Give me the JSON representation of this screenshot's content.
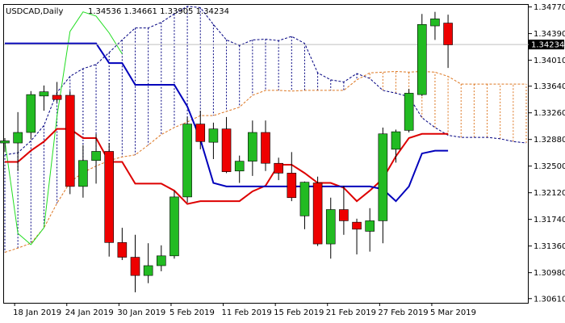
{
  "chart_data": {
    "type": "candlestick",
    "header": {
      "symbol": "USDCAD,Daily",
      "ohlc": "1.34536 1.34661 1.33905 1.34234"
    },
    "current_price_label": "1.34234",
    "current_price": 1.34234,
    "ylim": [
      1.3055,
      1.348
    ],
    "y_ticks": [
      1.3477,
      1.3439,
      1.3401,
      1.3364,
      1.3326,
      1.3288,
      1.325,
      1.3212,
      1.3174,
      1.3136,
      1.3098,
      1.3061
    ],
    "y_tick_labels": [
      "1.34770",
      "1.34390",
      "1.34010",
      "1.33640",
      "1.33260",
      "1.32880",
      "1.32500",
      "1.32120",
      "1.31740",
      "1.31360",
      "1.30980",
      "1.30610"
    ],
    "x_label_positions": [
      1,
      5,
      9,
      13,
      17,
      21,
      25,
      29,
      33
    ],
    "x_labels": [
      "18 Jan 2019",
      "24 Jan 2019",
      "30 Jan 2019",
      "5 Feb 2019",
      "11 Feb 2019",
      "15 Feb 2019",
      "21 Feb 2019",
      "27 Feb 2019",
      "5 Mar 2019"
    ],
    "candles": [
      {
        "o": 1.3283,
        "h": 1.329,
        "l": 1.327,
        "c": 1.3286
      },
      {
        "o": 1.3283,
        "h": 1.3327,
        "l": 1.3243,
        "c": 1.3298
      },
      {
        "o": 1.3298,
        "h": 1.3357,
        "l": 1.3288,
        "c": 1.3352
      },
      {
        "o": 1.335,
        "h": 1.3365,
        "l": 1.3329,
        "c": 1.3356
      },
      {
        "o": 1.3351,
        "h": 1.337,
        "l": 1.3341,
        "c": 1.3345
      },
      {
        "o": 1.3351,
        "h": 1.3357,
        "l": 1.321,
        "c": 1.3221
      },
      {
        "o": 1.3221,
        "h": 1.328,
        "l": 1.3205,
        "c": 1.3258
      },
      {
        "o": 1.3258,
        "h": 1.3296,
        "l": 1.3225,
        "c": 1.3271
      },
      {
        "o": 1.3271,
        "h": 1.3283,
        "l": 1.3121,
        "c": 1.3141
      },
      {
        "o": 1.3141,
        "h": 1.3162,
        "l": 1.3116,
        "c": 1.312
      },
      {
        "o": 1.312,
        "h": 1.3152,
        "l": 1.307,
        "c": 1.3094
      },
      {
        "o": 1.3094,
        "h": 1.314,
        "l": 1.3083,
        "c": 1.3108
      },
      {
        "o": 1.3108,
        "h": 1.3137,
        "l": 1.31,
        "c": 1.3122
      },
      {
        "o": 1.3122,
        "h": 1.3215,
        "l": 1.3118,
        "c": 1.3206
      },
      {
        "o": 1.3206,
        "h": 1.332,
        "l": 1.3198,
        "c": 1.331
      },
      {
        "o": 1.331,
        "h": 1.3329,
        "l": 1.3274,
        "c": 1.3285
      },
      {
        "o": 1.3284,
        "h": 1.3312,
        "l": 1.326,
        "c": 1.3303
      },
      {
        "o": 1.3303,
        "h": 1.332,
        "l": 1.324,
        "c": 1.3242
      },
      {
        "o": 1.3243,
        "h": 1.3265,
        "l": 1.3226,
        "c": 1.3257
      },
      {
        "o": 1.3257,
        "h": 1.3315,
        "l": 1.3236,
        "c": 1.3298
      },
      {
        "o": 1.3298,
        "h": 1.3315,
        "l": 1.3243,
        "c": 1.3254
      },
      {
        "o": 1.3254,
        "h": 1.3262,
        "l": 1.323,
        "c": 1.324
      },
      {
        "o": 1.324,
        "h": 1.327,
        "l": 1.32,
        "c": 1.3205
      },
      {
        "o": 1.3179,
        "h": 1.3228,
        "l": 1.316,
        "c": 1.3227
      },
      {
        "o": 1.3226,
        "h": 1.3235,
        "l": 1.3136,
        "c": 1.3139
      },
      {
        "o": 1.3139,
        "h": 1.3205,
        "l": 1.3118,
        "c": 1.3188
      },
      {
        "o": 1.3188,
        "h": 1.3222,
        "l": 1.3152,
        "c": 1.3172
      },
      {
        "o": 1.317,
        "h": 1.3175,
        "l": 1.3124,
        "c": 1.316
      },
      {
        "o": 1.3157,
        "h": 1.319,
        "l": 1.3128,
        "c": 1.3172
      },
      {
        "o": 1.3172,
        "h": 1.3305,
        "l": 1.314,
        "c": 1.3296
      },
      {
        "o": 1.3274,
        "h": 1.3302,
        "l": 1.3255,
        "c": 1.3299
      },
      {
        "o": 1.3301,
        "h": 1.336,
        "l": 1.3298,
        "c": 1.3354
      },
      {
        "o": 1.3352,
        "h": 1.3467,
        "l": 1.335,
        "c": 1.3452
      },
      {
        "o": 1.345,
        "h": 1.347,
        "l": 1.343,
        "c": 1.346
      },
      {
        "o": 1.3454,
        "h": 1.3466,
        "l": 1.339,
        "c": 1.3423
      }
    ],
    "series": [
      {
        "key": "tenkan",
        "color": "#dd0000",
        "x": [
          0,
          1,
          2,
          3,
          4,
          5,
          6,
          7,
          8,
          9,
          10,
          11,
          12,
          13,
          14,
          15,
          16,
          17,
          18,
          19,
          20,
          21,
          22,
          23,
          24,
          25,
          26,
          27,
          28,
          29,
          30,
          31,
          32,
          33,
          34
        ],
        "values": [
          1.3256,
          1.3256,
          1.3272,
          1.3285,
          1.3303,
          1.3303,
          1.329,
          1.329,
          1.3256,
          1.3256,
          1.3225,
          1.3225,
          1.3225,
          1.3215,
          1.3196,
          1.32,
          1.32,
          1.32,
          1.32,
          1.3214,
          1.3222,
          1.3252,
          1.3252,
          1.324,
          1.3226,
          1.3226,
          1.3219,
          1.32,
          1.3215,
          1.3232,
          1.3264,
          1.329,
          1.3296,
          1.3296,
          1.3296
        ]
      },
      {
        "key": "kijun",
        "color": "#0000bb",
        "x": [
          0,
          1,
          2,
          3,
          4,
          5,
          6,
          7,
          8,
          9,
          10,
          11,
          12,
          13,
          14,
          15,
          16,
          17,
          18,
          19,
          20,
          21,
          22,
          23,
          24,
          25,
          26,
          27,
          28,
          29,
          30,
          31,
          32,
          33,
          34
        ],
        "values": [
          1.3425,
          1.3425,
          1.3425,
          1.3425,
          1.3425,
          1.3425,
          1.3425,
          1.3425,
          1.3397,
          1.3397,
          1.3366,
          1.3366,
          1.3366,
          1.3366,
          1.3335,
          1.3288,
          1.3226,
          1.3221,
          1.3221,
          1.3221,
          1.3221,
          1.3221,
          1.3221,
          1.3221,
          1.3221,
          1.3221,
          1.3221,
          1.3221,
          1.3221,
          1.3217,
          1.32,
          1.3221,
          1.3268,
          1.3272,
          1.3272
        ]
      },
      {
        "key": "chikou",
        "color": "#22dd22",
        "x": [
          0,
          1,
          2,
          3,
          4,
          5,
          6,
          7,
          8,
          9
        ],
        "values": [
          1.3286,
          1.3154,
          1.3138,
          1.3162,
          1.3321,
          1.3442,
          1.347,
          1.3464,
          1.344,
          1.341
        ]
      },
      {
        "key": "senkou_a",
        "color": "#000080",
        "x": [
          0,
          1,
          2,
          3,
          4,
          5,
          6,
          7,
          8,
          9,
          10,
          11,
          12,
          13,
          14,
          15,
          16,
          17,
          18,
          19,
          20,
          21,
          22,
          23,
          24,
          25,
          26,
          27,
          28,
          29,
          30,
          31,
          32,
          33,
          34,
          35,
          36,
          37,
          38,
          39,
          40
        ],
        "values": [
          1.3266,
          1.3269,
          1.3286,
          1.3308,
          1.3355,
          1.3378,
          1.3389,
          1.3395,
          1.3412,
          1.343,
          1.3447,
          1.3447,
          1.3455,
          1.3467,
          1.3478,
          1.3476,
          1.3452,
          1.343,
          1.3422,
          1.343,
          1.3431,
          1.3429,
          1.3435,
          1.3425,
          1.3383,
          1.3373,
          1.337,
          1.3382,
          1.3375,
          1.3358,
          1.3354,
          1.3349,
          1.3319,
          1.3305,
          1.3294,
          1.3291,
          1.3291,
          1.3291,
          1.3289,
          1.3285,
          1.3283
        ]
      },
      {
        "key": "senkou_b",
        "color": "#dd7722",
        "x": [
          0,
          1,
          2,
          3,
          4,
          5,
          6,
          7,
          8,
          9,
          10,
          11,
          12,
          13,
          14,
          15,
          16,
          17,
          18,
          19,
          20,
          21,
          22,
          23,
          24,
          25,
          26,
          27,
          28,
          29,
          30,
          31,
          32,
          33,
          34,
          35,
          36,
          37,
          38,
          39,
          40
        ],
        "values": [
          1.3127,
          1.3133,
          1.314,
          1.3162,
          1.3197,
          1.3227,
          1.3241,
          1.325,
          1.3258,
          1.3263,
          1.3266,
          1.328,
          1.3295,
          1.3305,
          1.3313,
          1.3322,
          1.3322,
          1.3328,
          1.3334,
          1.3351,
          1.3358,
          1.3358,
          1.3357,
          1.3358,
          1.3358,
          1.3358,
          1.3358,
          1.3373,
          1.3383,
          1.3384,
          1.3385,
          1.3384,
          1.3385,
          1.3384,
          1.3378,
          1.3367,
          1.3367,
          1.3367,
          1.3367,
          1.3367,
          1.3367
        ]
      }
    ]
  }
}
